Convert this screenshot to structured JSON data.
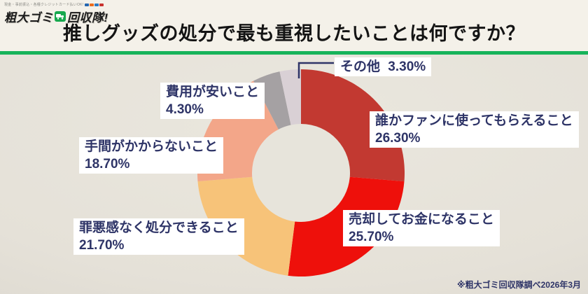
{
  "header": {
    "logo": {
      "tagline": "現金・事前振込・各種クレジットカード払いOK!",
      "brand_left": "粗大ゴミ",
      "brand_right": "回収隊!"
    },
    "title": "推しグッズの処分で最も重視したいことは何ですか？",
    "accent_color": "#17b35a"
  },
  "chart_data": {
    "type": "pie",
    "donut": true,
    "start_angle_deg": 0,
    "direction": "clockwise",
    "title": "推しグッズの処分で最も重視したいことは何ですか？",
    "legend_position": "callout-labels",
    "hole_color": "#e7e4db",
    "label_color": "#2e3467",
    "segments": [
      {
        "key": "fan",
        "label": "誰かファンに使ってもらえること",
        "value": 26.3,
        "display": "26.30%",
        "color": "#c23931"
      },
      {
        "key": "sell",
        "label": "売却してお金になること",
        "value": 25.7,
        "display": "25.70%",
        "color": "#ee100b"
      },
      {
        "key": "guilt",
        "label": "罪悪感なく処分できること",
        "value": 21.7,
        "display": "21.70%",
        "color": "#f7c379"
      },
      {
        "key": "effort",
        "label": "手間がかからないこと",
        "value": 18.7,
        "display": "18.70%",
        "color": "#f3a689"
      },
      {
        "key": "cost",
        "label": "費用が安いこと",
        "value": 4.3,
        "display": "4.30%",
        "color": "#a5a1a3"
      },
      {
        "key": "other",
        "label": "その他",
        "value": 3.3,
        "display": "3.30%",
        "color": "#d9d0d5"
      }
    ]
  },
  "footnote": "※粗大ゴミ回収隊調べ2026年3月"
}
